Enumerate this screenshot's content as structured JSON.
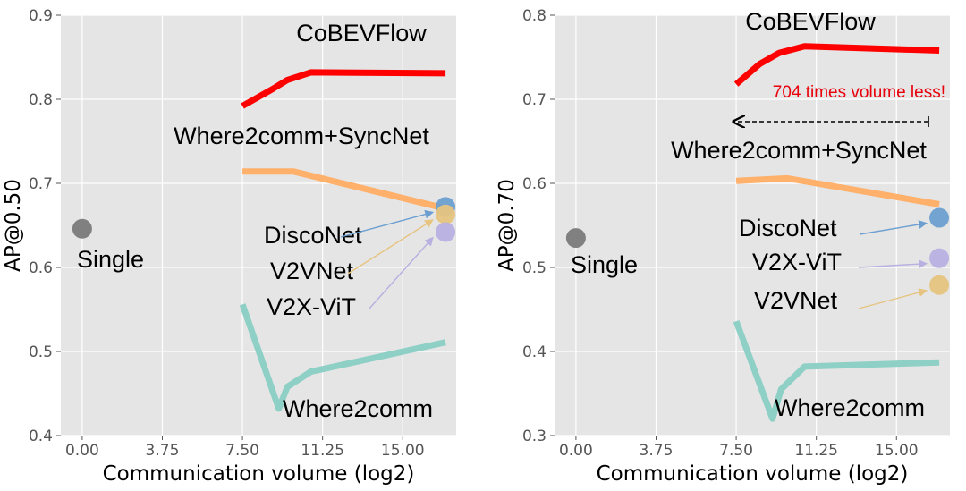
{
  "colors": {
    "CoBEVFlow": "#ff0000",
    "Where2comm+SyncNet": "#ffb06a",
    "Where2comm": "#8ecfc6",
    "DiscoNet": "#6c9fd0",
    "V2VNet": "#e6c480",
    "V2X-ViT": "#b8b0e0",
    "Single": "#7a7a7a",
    "callout": "#e8000b",
    "plot_bg": "#e5e5e5"
  },
  "chart_data": [
    {
      "type": "line",
      "xlabel": "Communication volume (log2)",
      "ylabel": "AP@0.50",
      "xlim": [
        -1.0,
        17.5
      ],
      "ylim": [
        0.4,
        0.9
      ],
      "xticks": [
        "0.00",
        "3.75",
        "7.50",
        "11.25",
        "15.00"
      ],
      "yticks": [
        "0.4",
        "0.5",
        "0.6",
        "0.7",
        "0.8",
        "0.9"
      ],
      "grid": true,
      "series": [
        {
          "name": "CoBEVFlow",
          "color_key": "CoBEVFlow",
          "x": [
            7.5,
            8.9,
            9.6,
            10.7,
            17.0
          ],
          "y": [
            0.792,
            0.812,
            0.823,
            0.832,
            0.831
          ]
        },
        {
          "name": "Where2comm+SyncNet",
          "color_key": "Where2comm+SyncNet",
          "x": [
            7.5,
            9.9,
            17.0
          ],
          "y": [
            0.714,
            0.714,
            0.67
          ]
        },
        {
          "name": "Where2comm",
          "color_key": "Where2comm",
          "x": [
            7.5,
            9.2,
            9.6,
            10.7,
            17.0
          ],
          "y": [
            0.556,
            0.432,
            0.458,
            0.476,
            0.511
          ]
        }
      ],
      "points": [
        {
          "name": "Single",
          "color_key": "Single",
          "x": 0.0,
          "y": 0.646
        },
        {
          "name": "DiscoNet",
          "color_key": "DiscoNet",
          "x": 17.0,
          "y": 0.672
        },
        {
          "name": "V2VNet",
          "color_key": "V2VNet",
          "x": 17.0,
          "y": 0.663
        },
        {
          "name": "V2X-ViT",
          "color_key": "V2X-ViT",
          "x": 17.0,
          "y": 0.642
        }
      ],
      "annotations": [
        "CoBEVFlow",
        "Where2comm+SyncNet",
        "Single",
        "DiscoNet",
        "V2VNet",
        "V2X-ViT",
        "Where2comm"
      ]
    },
    {
      "type": "line",
      "xlabel": "Communication volume (log2)",
      "ylabel": "AP@0.70",
      "xlim": [
        -1.0,
        17.5
      ],
      "ylim": [
        0.3,
        0.8
      ],
      "xticks": [
        "0.00",
        "3.75",
        "7.50",
        "11.25",
        "15.00"
      ],
      "yticks": [
        "0.3",
        "0.4",
        "0.5",
        "0.6",
        "0.7",
        "0.8"
      ],
      "grid": true,
      "series": [
        {
          "name": "CoBEVFlow",
          "color_key": "CoBEVFlow",
          "x": [
            7.5,
            8.6,
            9.5,
            10.7,
            17.0
          ],
          "y": [
            0.718,
            0.742,
            0.755,
            0.763,
            0.758
          ]
        },
        {
          "name": "Where2comm+SyncNet",
          "color_key": "Where2comm+SyncNet",
          "x": [
            7.5,
            9.9,
            17.0
          ],
          "y": [
            0.603,
            0.606,
            0.575
          ]
        },
        {
          "name": "Where2comm",
          "color_key": "Where2comm",
          "x": [
            7.5,
            9.2,
            9.6,
            10.7,
            17.0
          ],
          "y": [
            0.436,
            0.32,
            0.355,
            0.382,
            0.387
          ]
        }
      ],
      "points": [
        {
          "name": "Single",
          "color_key": "Single",
          "x": 0.0,
          "y": 0.535
        },
        {
          "name": "DiscoNet",
          "color_key": "DiscoNet",
          "x": 17.0,
          "y": 0.559
        },
        {
          "name": "V2X-ViT",
          "color_key": "V2X-ViT",
          "x": 17.0,
          "y": 0.511
        },
        {
          "name": "V2VNet",
          "color_key": "V2VNet",
          "x": 17.0,
          "y": 0.479
        }
      ],
      "annotations": [
        "CoBEVFlow",
        "Where2comm+SyncNet",
        "Single",
        "DiscoNet",
        "V2X-ViT",
        "V2VNet",
        "Where2comm"
      ],
      "callout": "704 times volume less!"
    }
  ]
}
